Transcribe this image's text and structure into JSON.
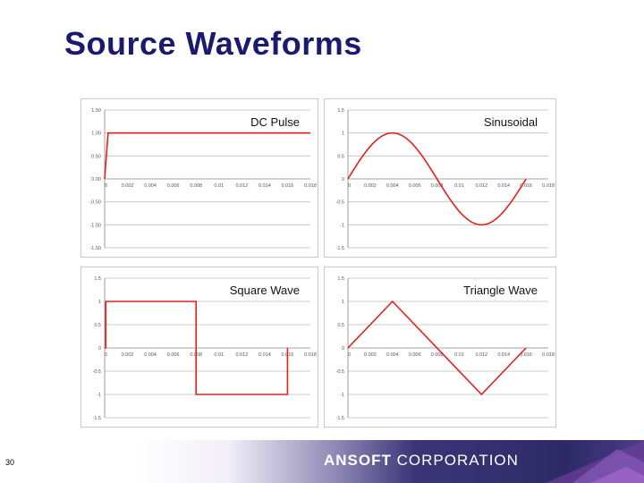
{
  "slide": {
    "title": "Source Waveforms",
    "page_number": "30",
    "brand_bold": "ANSOFT",
    "brand_light": "CORPORATION",
    "accent_color": "#1a1a6e",
    "line_color": "#e02020"
  },
  "chart_data": [
    {
      "type": "line",
      "title": "DC Pulse",
      "xlim": [
        0,
        0.018
      ],
      "ylim": [
        -1.5,
        1.5
      ],
      "x_ticks": [
        0,
        0.002,
        0.004,
        0.006,
        0.008,
        0.01,
        0.012,
        0.014,
        0.016,
        0.018
      ],
      "x_tick_labels": [
        "0",
        "0.002",
        "0.004",
        "0.006",
        "0.008",
        "0.01",
        "0.012",
        "0.014",
        "0.016",
        "0.018"
      ],
      "y_ticks": [
        1.5,
        1.0,
        0.5,
        0.0,
        -0.5,
        -1.0,
        -1.5
      ],
      "y_tick_labels": [
        "1.50",
        "1.00",
        "0.50",
        "0.00",
        "-0.50",
        "-1.00",
        "-1.50"
      ],
      "grid": true,
      "series": [
        {
          "x": [
            0,
            0.0003,
            0.018
          ],
          "y": [
            0,
            1,
            1
          ]
        }
      ]
    },
    {
      "type": "line",
      "title": "Sinusoidal",
      "xlim": [
        0,
        0.018
      ],
      "ylim": [
        -1.5,
        1.5
      ],
      "x_ticks": [
        0,
        0.002,
        0.004,
        0.006,
        0.008,
        0.01,
        0.012,
        0.014,
        0.016,
        0.018
      ],
      "x_tick_labels": [
        "0",
        "0.002",
        "0.004",
        "0.006",
        "0.008",
        "0.01",
        "0.012",
        "0.014",
        "0.016",
        "0.018"
      ],
      "y_ticks": [
        1.5,
        1.0,
        0.5,
        0.0,
        -0.5,
        -1.0,
        -1.5
      ],
      "y_tick_labels": [
        "1.5",
        "1",
        "0.5",
        "0",
        "-0.5",
        "-1",
        "-1.5"
      ],
      "grid": true,
      "series": [
        {
          "x": [
            0,
            0.001,
            0.002,
            0.003,
            0.004,
            0.005,
            0.006,
            0.007,
            0.008,
            0.009,
            0.01,
            0.011,
            0.012,
            0.013,
            0.014,
            0.015,
            0.016
          ],
          "y": [
            0,
            0.383,
            0.707,
            0.924,
            1.0,
            0.924,
            0.707,
            0.383,
            0,
            -0.383,
            -0.707,
            -0.924,
            -1.0,
            -0.924,
            -0.707,
            -0.383,
            0
          ]
        }
      ]
    },
    {
      "type": "line",
      "title": "Square Wave",
      "xlim": [
        0,
        0.018
      ],
      "ylim": [
        -1.5,
        1.5
      ],
      "x_ticks": [
        0,
        0.002,
        0.004,
        0.006,
        0.008,
        0.01,
        0.012,
        0.014,
        0.016,
        0.018
      ],
      "x_tick_labels": [
        "0",
        "0.002",
        "0.004",
        "0.006",
        "0.008",
        "0.01",
        "0.012",
        "0.014",
        "0.016",
        "0.018"
      ],
      "y_ticks": [
        1.5,
        1.0,
        0.5,
        0.0,
        -0.5,
        -1.0,
        -1.5
      ],
      "y_tick_labels": [
        "1.5",
        "1",
        "0.5",
        "0",
        "-0.5",
        "-1",
        "-1.5"
      ],
      "grid": true,
      "series": [
        {
          "x": [
            0,
            0.0001,
            0.0001,
            0.008,
            0.008,
            0.016,
            0.016
          ],
          "y": [
            0,
            0,
            1,
            1,
            -1,
            -1,
            0
          ]
        }
      ]
    },
    {
      "type": "line",
      "title": "Triangle Wave",
      "xlim": [
        0,
        0.018
      ],
      "ylim": [
        -1.5,
        1.5
      ],
      "x_ticks": [
        0,
        0.002,
        0.004,
        0.006,
        0.008,
        0.01,
        0.012,
        0.014,
        0.016,
        0.018
      ],
      "x_tick_labels": [
        "0",
        "0.002",
        "0.004",
        "0.006",
        "0.008",
        "0.01",
        "0.012",
        "0.014",
        "0.016",
        "0.018"
      ],
      "y_ticks": [
        1.5,
        1.0,
        0.5,
        0.0,
        -0.5,
        -1.0,
        -1.5
      ],
      "y_tick_labels": [
        "1.5",
        "1",
        "0.5",
        "0",
        "-0.5",
        "-1",
        "-1.5"
      ],
      "grid": true,
      "series": [
        {
          "x": [
            0,
            0.004,
            0.012,
            0.016
          ],
          "y": [
            0,
            1,
            -1,
            0
          ]
        }
      ]
    }
  ]
}
